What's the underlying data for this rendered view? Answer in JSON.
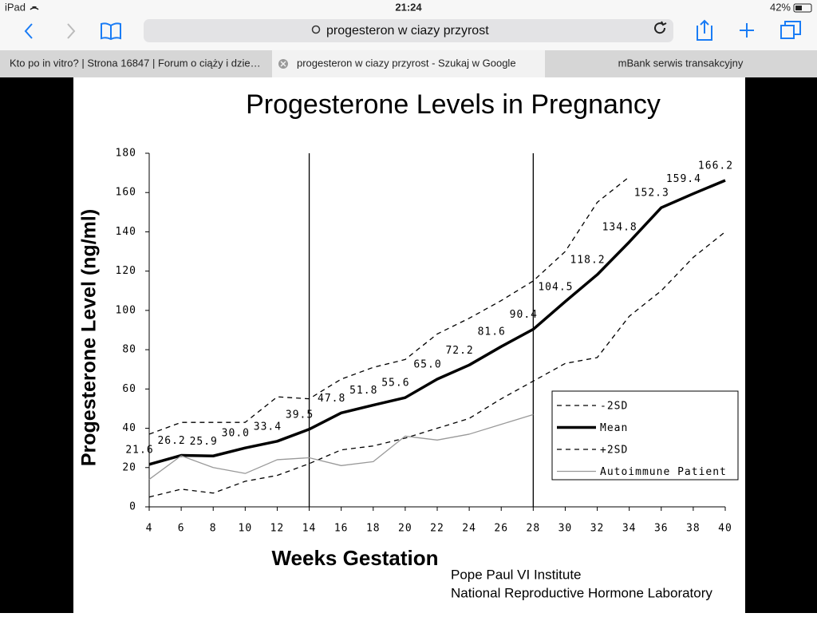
{
  "status_bar": {
    "device": "iPad",
    "time": "21:24",
    "battery": "42%"
  },
  "toolbar": {
    "address": "progesteron w ciazy przyrost"
  },
  "tabs": [
    "Kto po in vitro? | Strona 16847 | Forum o ciąży i dzie…",
    "progesteron w ciazy przyrost - Szukaj w Google",
    "mBank serwis transakcyjny"
  ],
  "chart_data": {
    "type": "line",
    "title": "Progesterone Levels in Pregnancy",
    "x_label": "Weeks Gestation",
    "y_label": "Progesterone Level (ng/ml)",
    "credits": [
      "Pope Paul VI Institute",
      "National Reproductive Hormone Laboratory"
    ],
    "x": [
      4,
      6,
      8,
      10,
      12,
      14,
      16,
      18,
      20,
      22,
      24,
      26,
      28,
      30,
      32,
      34,
      36,
      38,
      40
    ],
    "series": [
      {
        "name": "-2SD",
        "color": "#000000",
        "dashed": true,
        "width": 1.3,
        "values": [
          5,
          9,
          7,
          13,
          16,
          22,
          29,
          31,
          35,
          40,
          45,
          55,
          64,
          73,
          76,
          97,
          110,
          127,
          140
        ]
      },
      {
        "name": "Mean",
        "color": "#000000",
        "dashed": false,
        "width": 3.5,
        "values": [
          21.6,
          26.2,
          25.9,
          30.0,
          33.4,
          39.5,
          47.8,
          51.8,
          55.6,
          65.0,
          72.2,
          81.6,
          90.4,
          104.5,
          118.2,
          134.8,
          152.3,
          159.4,
          166.2
        ],
        "value_labels": [
          "21.6",
          "26.2",
          "25.9",
          "30.0",
          "33.4",
          "39.5",
          "47.8",
          "51.8",
          "55.6",
          "65.0",
          "72.2",
          "81.6",
          "90.4",
          "104.5",
          "118.2",
          "134.8",
          "152.3",
          "159.4",
          "166.2"
        ]
      },
      {
        "name": "+2SD",
        "color": "#000000",
        "dashed": true,
        "width": 1.3,
        "values": [
          37,
          43,
          43,
          43,
          56,
          55,
          65,
          71,
          75,
          88,
          96,
          105,
          115,
          130,
          155,
          168,
          null,
          null,
          null
        ]
      },
      {
        "name": "Autoimmune Patient",
        "color": "#999999",
        "dashed": false,
        "width": 1.3,
        "values": [
          14,
          26,
          20,
          17,
          24,
          25,
          21,
          23,
          36,
          34,
          37,
          42,
          47,
          null,
          null,
          null,
          null,
          null,
          null
        ]
      }
    ],
    "vlines": [
      14,
      28
    ],
    "xlim": [
      4,
      40
    ],
    "ylim": [
      0,
      180
    ],
    "xticks": [
      4,
      6,
      8,
      10,
      12,
      14,
      16,
      18,
      20,
      22,
      24,
      26,
      28,
      30,
      32,
      34,
      36,
      38,
      40
    ],
    "yticks": [
      0,
      20,
      40,
      60,
      80,
      100,
      120,
      140,
      160,
      180
    ],
    "grid": false,
    "legend": "lower right"
  }
}
